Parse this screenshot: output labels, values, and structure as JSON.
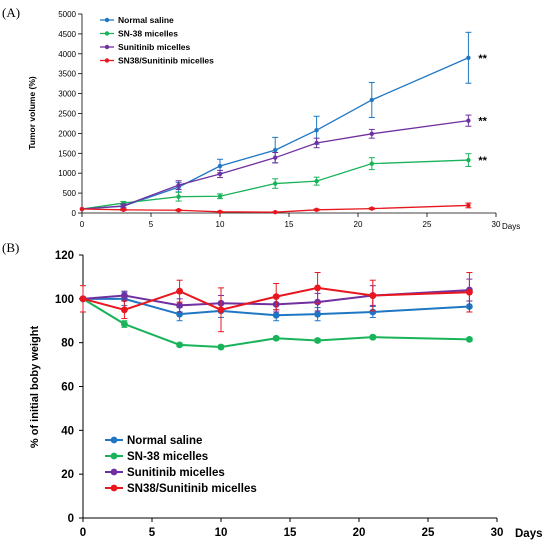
{
  "chart_data": [
    {
      "type": "line",
      "panel_label": "(A)",
      "xlabel": "Days",
      "ylabel": "Tumor volume (%)",
      "xlim": [
        0,
        30
      ],
      "ylim": [
        0,
        5000
      ],
      "xticks": [
        "0",
        "5",
        "10",
        "15",
        "20",
        "25",
        "30"
      ],
      "yticks": [
        "0",
        "500",
        "1000",
        "1500",
        "2000",
        "2500",
        "3000",
        "3500",
        "4000",
        "4500",
        "5000"
      ],
      "grid": false,
      "legend_position": "top-left",
      "x": [
        0,
        3,
        7,
        10,
        14,
        17,
        21,
        28
      ],
      "series": [
        {
          "name": "Normal saline",
          "color": "#1f77c4",
          "values": [
            100,
            170,
            650,
            1180,
            1580,
            2080,
            2840,
            3900
          ],
          "err": [
            0,
            40,
            120,
            170,
            320,
            350,
            440,
            640
          ]
        },
        {
          "name": "SN-38 micelles",
          "color": "#19b35a",
          "values": [
            100,
            250,
            410,
            420,
            740,
            800,
            1240,
            1330
          ],
          "err": [
            0,
            40,
            110,
            60,
            120,
            100,
            150,
            160
          ]
        },
        {
          "name": "Sunitinib micelles",
          "color": "#7030a0",
          "values": [
            100,
            180,
            700,
            980,
            1390,
            1760,
            1990,
            2320
          ],
          "err": [
            0,
            50,
            110,
            90,
            130,
            120,
            110,
            140
          ]
        },
        {
          "name": "SN38/Sunitinib micelles",
          "color": "#e8171f",
          "values": [
            100,
            80,
            70,
            30,
            20,
            80,
            110,
            190
          ],
          "err": [
            0,
            20,
            20,
            15,
            10,
            20,
            20,
            60
          ]
        }
      ],
      "annotations": [
        {
          "text": "**",
          "x": 28,
          "y": 3900
        },
        {
          "text": "**",
          "x": 28,
          "y": 2320
        },
        {
          "text": "**",
          "x": 28,
          "y": 1330
        }
      ]
    },
    {
      "type": "line",
      "panel_label": "(B)",
      "xlabel": "Days",
      "ylabel": "% of initial boby weight",
      "xlim": [
        0,
        30
      ],
      "ylim": [
        0,
        120
      ],
      "xticks": [
        "0",
        "5",
        "10",
        "15",
        "20",
        "25",
        "30"
      ],
      "yticks": [
        "0",
        "20",
        "40",
        "60",
        "80",
        "100",
        "120"
      ],
      "grid": false,
      "legend_position": "bottom-left",
      "x": [
        0,
        3,
        7,
        10,
        14,
        17,
        21,
        28
      ],
      "series": [
        {
          "name": "Normal saline",
          "color": "#1f77c4",
          "values": [
            100,
            100,
            93,
            94.5,
            92.5,
            93,
            94,
            96.5
          ],
          "err": [
            0,
            3,
            3,
            3,
            2.5,
            3,
            2.5,
            2.5
          ]
        },
        {
          "name": "SN-38 micelles",
          "color": "#19b35a",
          "values": [
            100,
            88.5,
            79,
            78,
            82,
            81,
            82.5,
            81.5
          ],
          "err": [
            0,
            1.5,
            0.8,
            0.8,
            0.8,
            0.8,
            0.8,
            0.8
          ]
        },
        {
          "name": "Sunitinib micelles",
          "color": "#7030a0",
          "values": [
            100,
            101.5,
            97,
            98,
            97.5,
            98.5,
            101.5,
            104
          ],
          "err": [
            0,
            2,
            3,
            3.5,
            3.5,
            4,
            4.5,
            5
          ]
        },
        {
          "name": "SN38/Sunitinib micelles",
          "color": "#e8171f",
          "values": [
            100,
            95,
            103.5,
            95,
            101,
            105,
            101.5,
            103
          ],
          "err": [
            6,
            4,
            5,
            10,
            6,
            7,
            7,
            9
          ]
        }
      ]
    }
  ]
}
